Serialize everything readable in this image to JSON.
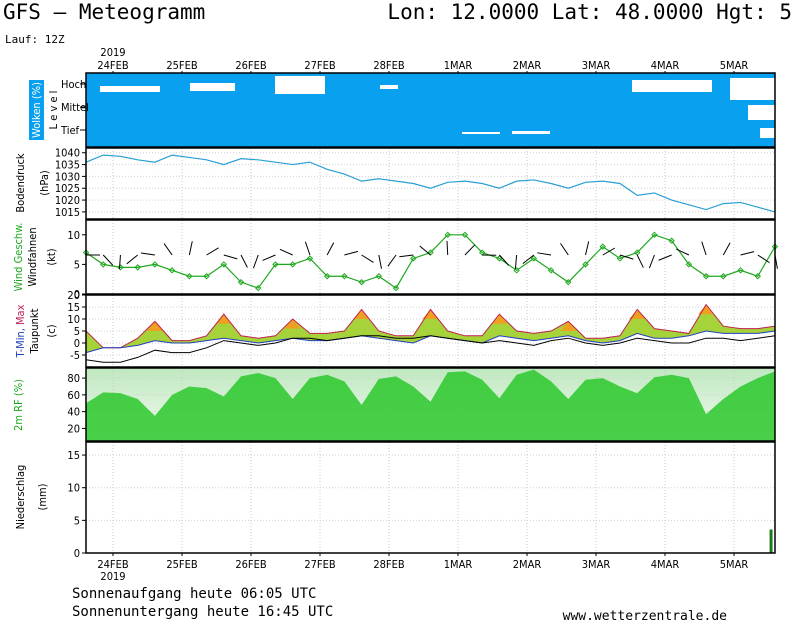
{
  "header": {
    "title": "GFS – Meteogramm",
    "coords": "Lon: 12.0000 Lat: 48.0000 Hgt: 5",
    "run": "Lauf: 12Z"
  },
  "year_label": "2019",
  "dates": [
    "24FEB",
    "25FEB",
    "26FEB",
    "27FEB",
    "28FEB",
    "1MAR",
    "2MAR",
    "3MAR",
    "4MAR",
    "5MAR"
  ],
  "footer": {
    "sunrise": "Sonnenaufgang heute 06:05 UTC",
    "sunset": "Sonnenuntergang heute 16:45 UTC",
    "credit": "www.wetterzentrale.de"
  },
  "colors": {
    "cloud_bg": "#0aa0f0",
    "pressure_line": "#2a9fd6",
    "wind_line": "#1fa81f",
    "rh_fill": "#2cc82c"
  },
  "chart_data": [
    {
      "type": "area",
      "name": "clouds",
      "panel_label": "Wolken (%)",
      "level_label": "L e v e l",
      "levels": [
        "Hoch",
        "Mittel",
        "Tief"
      ]
    },
    {
      "type": "line",
      "panel_label": "Bodendruck",
      "unit": "(hPa)",
      "ylim": [
        1012,
        1042
      ],
      "yticks": [
        1015,
        1020,
        1025,
        1030,
        1035,
        1040
      ],
      "x_days": [
        0,
        0.25,
        0.5,
        0.75,
        1,
        1.25,
        1.5,
        1.75,
        2,
        2.25,
        2.5,
        2.75,
        3,
        3.25,
        3.5,
        3.75,
        4,
        4.25,
        4.5,
        4.75,
        5,
        5.25,
        5.5,
        5.75,
        6,
        6.25,
        6.5,
        6.75,
        7,
        7.25,
        7.5,
        7.75,
        8,
        8.25,
        8.5,
        8.75,
        9,
        9.25,
        9.5,
        9.75,
        10
      ],
      "values": [
        1036,
        1039,
        1038.5,
        1037,
        1036,
        1039,
        1038,
        1037,
        1035,
        1037.5,
        1037,
        1036,
        1035,
        1036,
        1033,
        1031,
        1028,
        1029,
        1028,
        1027,
        1025,
        1027.5,
        1028,
        1027,
        1025,
        1028,
        1028.5,
        1027,
        1025,
        1027.5,
        1028,
        1027,
        1022,
        1023,
        1020,
        1018,
        1016,
        1018.5,
        1019,
        1017,
        1015
      ]
    },
    {
      "type": "line",
      "panel_label": "Wind Geschw.",
      "panel_label2": "Windfahnen",
      "unit": "(kt)",
      "ylim": [
        0,
        12.5
      ],
      "yticks": [
        0,
        5,
        10
      ],
      "x_days": [
        0,
        0.25,
        0.5,
        0.75,
        1,
        1.25,
        1.5,
        1.75,
        2,
        2.25,
        2.5,
        2.75,
        3,
        3.25,
        3.5,
        3.75,
        4,
        4.25,
        4.5,
        4.75,
        5,
        5.25,
        5.5,
        5.75,
        6,
        6.25,
        6.5,
        6.75,
        7,
        7.25,
        7.5,
        7.75,
        8,
        8.25,
        8.5,
        8.75,
        9,
        9.25,
        9.5,
        9.75,
        10
      ],
      "values": [
        7,
        5,
        4.5,
        4.5,
        5,
        4,
        3,
        3,
        5,
        2,
        1,
        5,
        5,
        6,
        3,
        3,
        2,
        3,
        1,
        6,
        7,
        10,
        10,
        7,
        6,
        4,
        6,
        4,
        2,
        5,
        8,
        6,
        7,
        10,
        9,
        5,
        3,
        3,
        4,
        3,
        8
      ]
    },
    {
      "type": "area",
      "panel_label": "T-Min, Max",
      "panel_label2": "Taupunkt",
      "unit": "(c)",
      "ylim": [
        -10,
        20
      ],
      "yticks": [
        -5,
        0,
        5,
        10,
        15,
        20
      ],
      "x_days": [
        0,
        0.25,
        0.5,
        0.75,
        1,
        1.25,
        1.5,
        1.75,
        2,
        2.25,
        2.5,
        2.75,
        3,
        3.25,
        3.5,
        3.75,
        4,
        4.25,
        4.5,
        4.75,
        5,
        5.25,
        5.5,
        5.75,
        6,
        6.25,
        6.5,
        6.75,
        7,
        7.25,
        7.5,
        7.75,
        8,
        8.25,
        8.5,
        8.75,
        9,
        9.25,
        9.5,
        9.75,
        10
      ],
      "series": [
        {
          "name": "T-Max",
          "values": [
            5,
            -2,
            -2,
            2,
            9,
            1,
            1,
            3,
            12,
            3,
            2,
            3,
            10,
            4,
            4,
            5,
            14,
            5,
            3,
            3,
            14,
            5,
            3,
            3,
            12,
            5,
            4,
            5,
            9,
            2,
            2,
            3,
            14,
            6,
            5,
            4,
            16,
            7,
            6,
            6,
            7
          ]
        },
        {
          "name": "T-Min",
          "values": [
            -4,
            -2,
            -2,
            -1,
            1,
            0,
            0,
            1,
            2,
            1,
            0,
            1,
            2,
            1,
            1,
            2,
            3,
            2,
            1,
            0,
            3,
            2,
            1,
            0,
            3,
            2,
            1,
            2,
            3,
            1,
            0,
            1,
            4,
            2,
            2,
            3,
            5,
            4,
            4,
            4,
            5
          ]
        },
        {
          "name": "Taupunkt",
          "values": [
            -7,
            -8,
            -8,
            -6,
            -3,
            -4,
            -4,
            -2,
            1,
            0,
            -1,
            0,
            2,
            2,
            1,
            2,
            3,
            3,
            2,
            2,
            3,
            2,
            1,
            0,
            1,
            0,
            -1,
            1,
            2,
            0,
            -1,
            0,
            2,
            1,
            0,
            0,
            2,
            2,
            1,
            2,
            3
          ]
        }
      ]
    },
    {
      "type": "area",
      "panel_label": "2m RF (%)",
      "ylim": [
        5,
        92
      ],
      "yticks": [
        20,
        40,
        60,
        80
      ],
      "x_days": [
        0,
        0.25,
        0.5,
        0.75,
        1,
        1.25,
        1.5,
        1.75,
        2,
        2.25,
        2.5,
        2.75,
        3,
        3.25,
        3.5,
        3.75,
        4,
        4.25,
        4.5,
        4.75,
        5,
        5.25,
        5.5,
        5.75,
        6,
        6.25,
        6.5,
        6.75,
        7,
        7.25,
        7.5,
        7.75,
        8,
        8.25,
        8.5,
        8.75,
        9,
        9.25,
        9.5,
        9.75,
        10
      ],
      "values": [
        50,
        63,
        62,
        55,
        35,
        60,
        70,
        68,
        58,
        82,
        86,
        80,
        55,
        80,
        84,
        76,
        48,
        79,
        82,
        70,
        52,
        87,
        88,
        78,
        56,
        84,
        90,
        76,
        55,
        78,
        80,
        70,
        62,
        81,
        84,
        80,
        37,
        55,
        70,
        80,
        88
      ]
    },
    {
      "type": "bar",
      "panel_label": "Niederschlag",
      "unit": "(mm)",
      "ylim": [
        0,
        17
      ],
      "yticks": [
        0,
        5,
        10,
        15
      ],
      "x_days": [
        9.95
      ],
      "values": [
        3.6
      ]
    }
  ]
}
